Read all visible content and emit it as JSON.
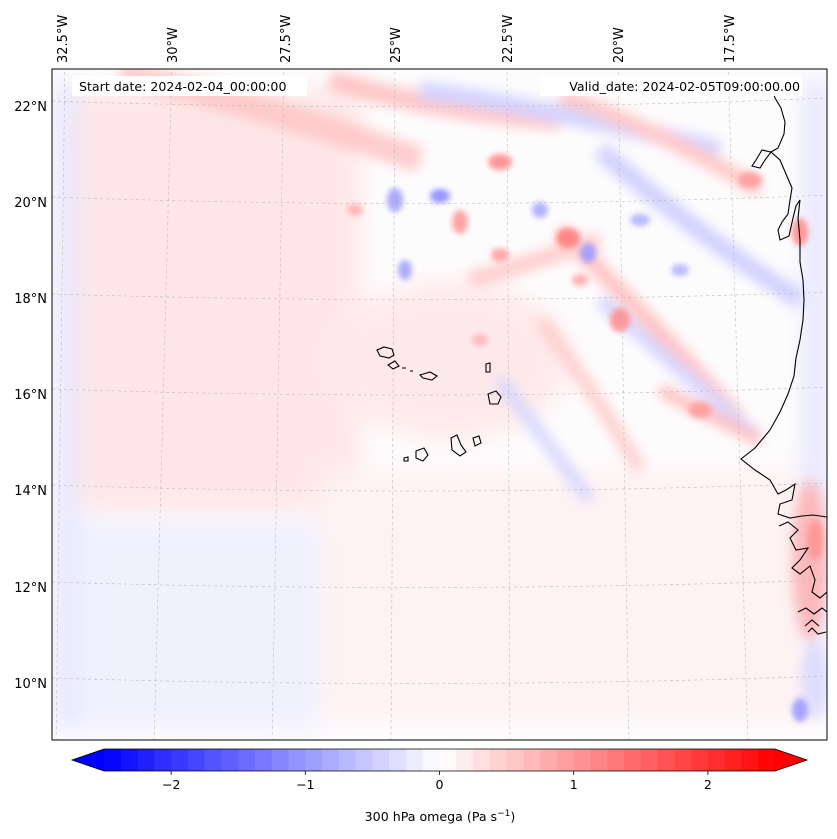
{
  "map": {
    "start_label": "Start date: 2024-02-04_00:00:00",
    "valid_label": "Valid_date: 2024-02-05T09:00:00.00",
    "lon_labels": [
      "32.5°W",
      "30°W",
      "27.5°W",
      "25°W",
      "22.5°W",
      "20°W",
      "17.5°W"
    ],
    "lat_labels": [
      "22°N",
      "20°N",
      "18°N",
      "16°N",
      "14°N",
      "12°N",
      "10°N"
    ],
    "field": "300 hPa omega",
    "units": "Pa s",
    "units_exponent": "−1"
  },
  "colorbar": {
    "ticks": [
      {
        "label": "−2",
        "value": -2
      },
      {
        "label": "−1",
        "value": -1
      },
      {
        "label": "0",
        "value": 0
      },
      {
        "label": "1",
        "value": 1
      },
      {
        "label": "2",
        "value": 2
      }
    ],
    "vmin": -2.5,
    "vmax": 2.5,
    "levels": 40,
    "color_min": "#0000ff",
    "color_mid": "#ffffff",
    "color_max": "#ff0000"
  },
  "colors": {
    "coast": "#000000",
    "grid": "#bbbbbb",
    "pos_tint": "#ff9090",
    "neg_tint": "#8080ff"
  }
}
